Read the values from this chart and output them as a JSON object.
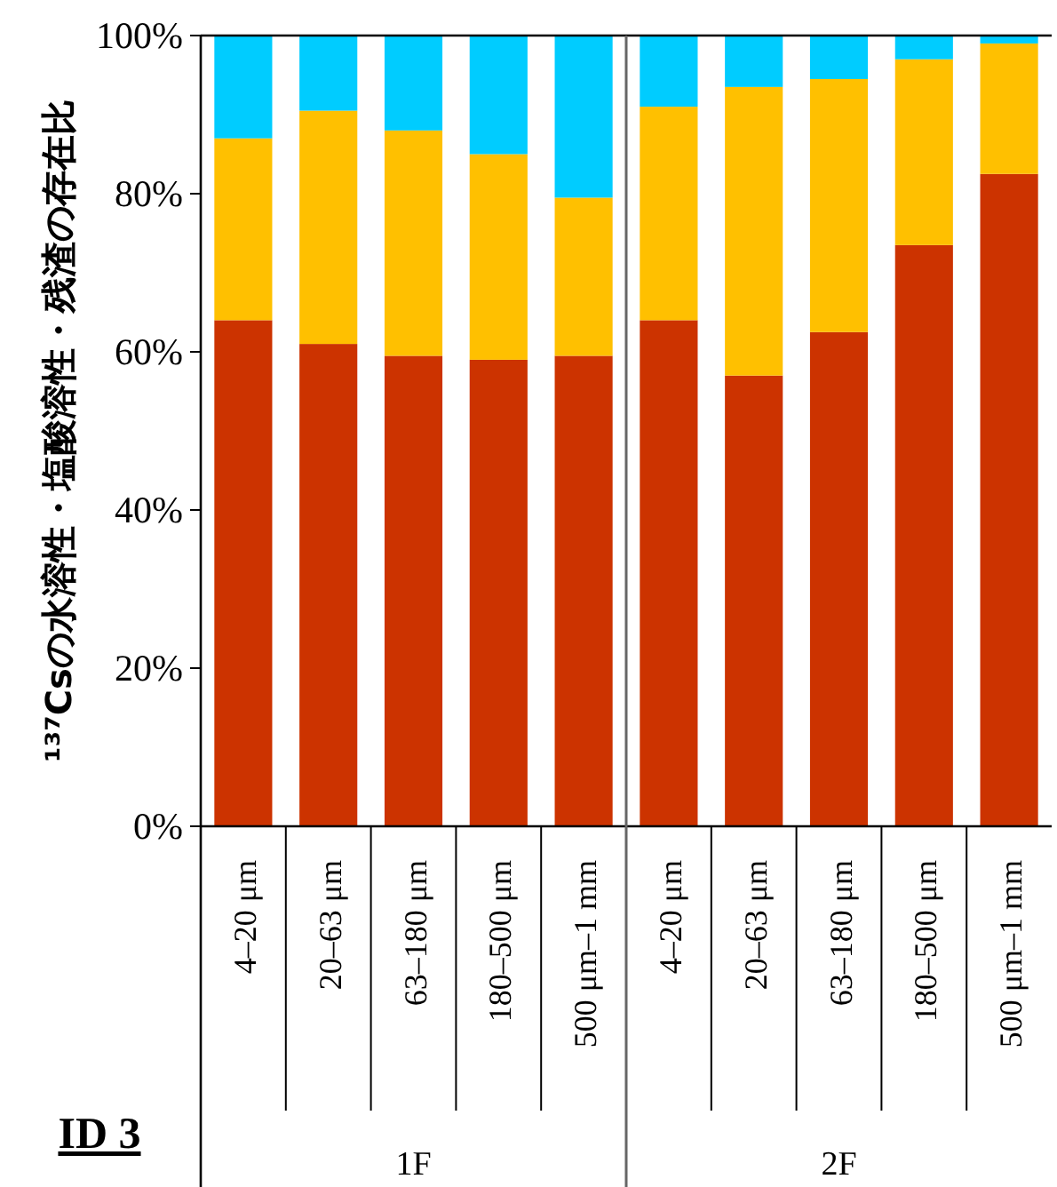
{
  "chart_data": {
    "type": "bar",
    "stacked": true,
    "title": "ID 3",
    "ylabel": "¹³⁷Csの水溶性・塩酸溶性・残渣の存在比",
    "categories": [
      "4–20 μm",
      "20–63 μm",
      "63–180 μm",
      "180–500 μm",
      "500 μm–1 mm",
      "4–20 μm",
      "20–63 μm",
      "63–180 μm",
      "180–500 μm",
      "500 μm–1 mm"
    ],
    "series": [
      {
        "color": "#cc3300",
        "values": [
          64,
          61,
          59.5,
          59,
          59.5,
          64,
          57,
          62.5,
          73.5,
          82.5
        ]
      },
      {
        "color": "#ffc000",
        "values": [
          23,
          29.5,
          28.5,
          26,
          20,
          27,
          36.5,
          32,
          23.5,
          16.5
        ]
      },
      {
        "color": "#00ccff",
        "values": [
          13,
          9.5,
          12,
          15,
          20.5,
          9,
          6.5,
          5.5,
          3,
          1
        ]
      }
    ],
    "ylim": [
      0,
      100
    ],
    "yticks": [
      {
        "value": 0,
        "label": "0%"
      },
      {
        "value": 20,
        "label": "20%"
      },
      {
        "value": 40,
        "label": "40%"
      },
      {
        "value": 60,
        "label": "60%"
      },
      {
        "value": 80,
        "label": "80%"
      },
      {
        "value": 100,
        "label": "100%"
      }
    ],
    "annotations": [
      "1F",
      "2F"
    ],
    "grid": false
  }
}
